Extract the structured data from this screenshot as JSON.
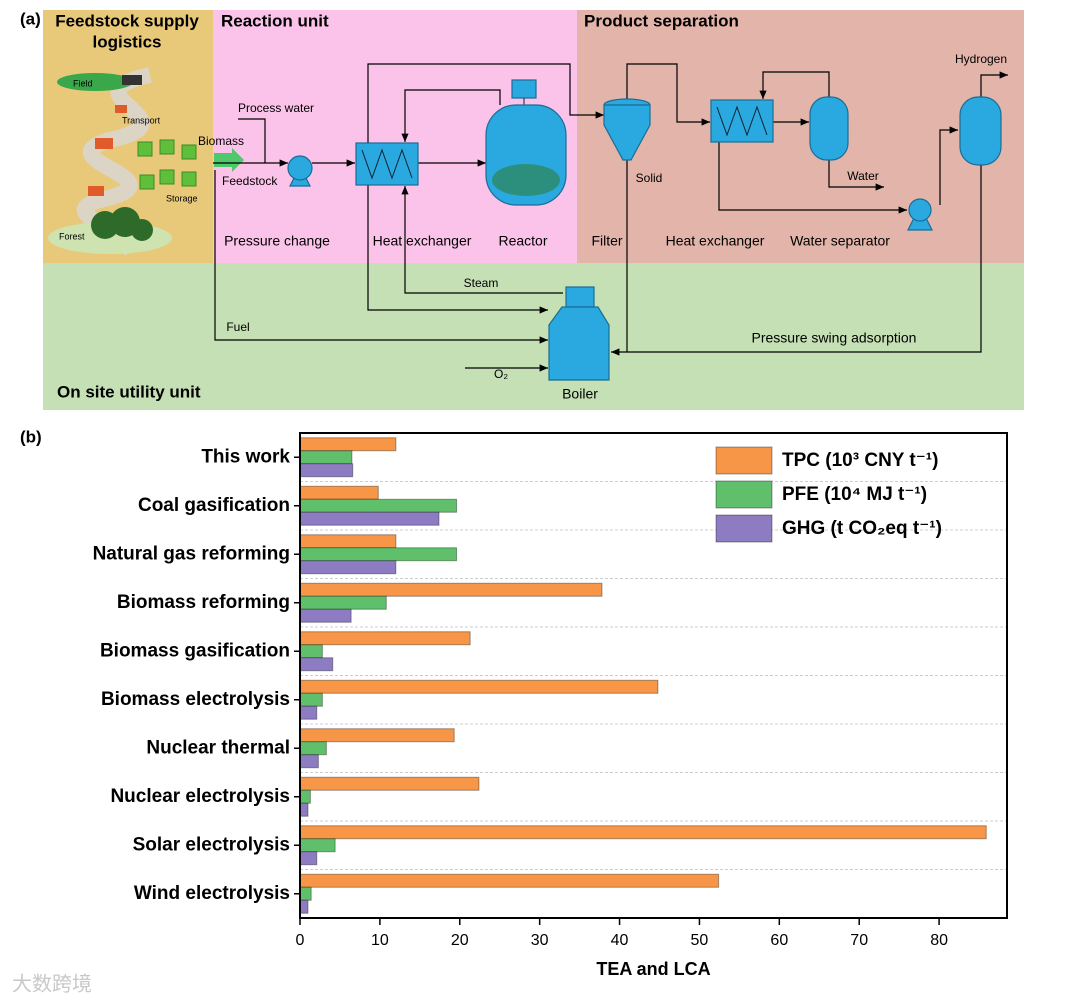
{
  "diagram": {
    "label": "(a)",
    "sections": {
      "feedstock": [
        "Feedstock supply",
        "logistics"
      ],
      "reaction": "Reaction unit",
      "separation": "Product separation",
      "utility": "On site utility unit"
    },
    "labels": [
      "Field",
      "Transport",
      "Biomass",
      "Storage",
      "Forest",
      "Process water",
      "Feedstock",
      "Pressure change",
      "Heat exchanger",
      "Reactor",
      "Solid",
      "Filter",
      "Heat exchanger",
      "Water separator",
      "Water",
      "Hydrogen",
      "Steam",
      "Fuel",
      "Pressure swing adsorption",
      "O₂",
      "Boiler"
    ]
  },
  "panel_b_label": "(b)",
  "watermark": "大数跨境",
  "chart_data": {
    "type": "hbar",
    "categories": [
      "This work",
      "Coal gasification",
      "Natural gas reforming",
      "Biomass reforming",
      "Biomass gasification",
      "Biomass electrolysis",
      "Nuclear thermal",
      "Nuclear electrolysis",
      "Solar electrolysis",
      "Wind electrolysis"
    ],
    "series": [
      {
        "name": "TPC (10³ CNY t⁻¹)",
        "color": "#f79646",
        "values": [
          12.0,
          9.8,
          12.0,
          37.8,
          21.3,
          44.8,
          19.3,
          22.4,
          85.9,
          52.4
        ]
      },
      {
        "name": "PFE (10⁴ MJ t⁻¹)",
        "color": "#5fbf6a",
        "values": [
          6.5,
          19.6,
          19.6,
          10.8,
          2.8,
          2.8,
          3.3,
          1.3,
          4.4,
          1.4
        ]
      },
      {
        "name": "GHG (t CO₂eq t⁻¹)",
        "color": "#8e7cc3",
        "values": [
          6.6,
          17.4,
          12.0,
          6.4,
          4.1,
          2.1,
          2.3,
          1.0,
          2.1,
          1.0
        ]
      }
    ],
    "xlim": [
      0,
      88.5
    ],
    "xticks": [
      0,
      10,
      20,
      30,
      40,
      50,
      60,
      70,
      80
    ],
    "xlabel": "TEA and LCA",
    "legend": "upper right"
  }
}
